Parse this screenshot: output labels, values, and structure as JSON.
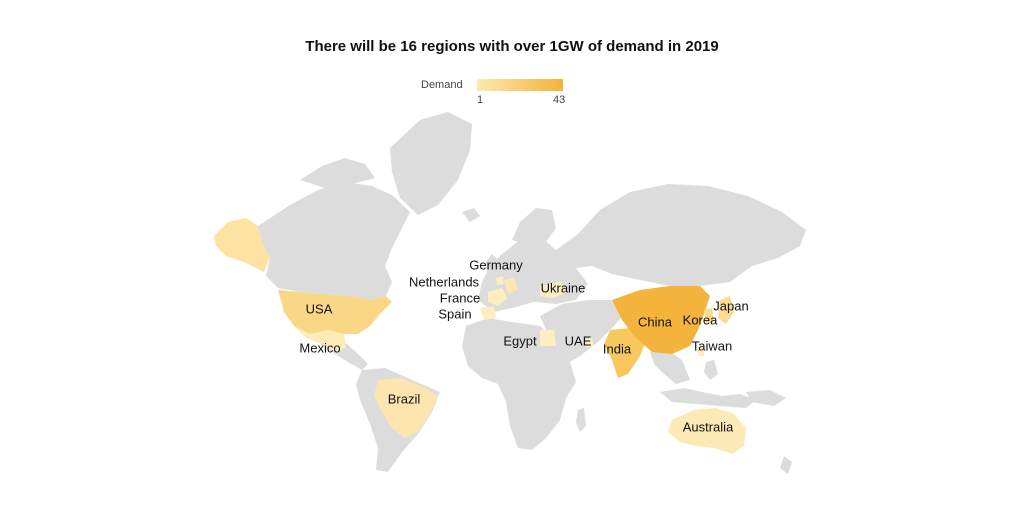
{
  "title": "There will be 16 regions with over 1GW of demand in 2019",
  "legend": {
    "title": "Demand",
    "min": "1",
    "max": "43"
  },
  "colors": {
    "land": "#dcdcdc",
    "scale_low": "#fde9b0",
    "scale_high": "#f4b33a",
    "label": "#111111"
  },
  "regions": {
    "usa": "USA",
    "mexico": "Mexico",
    "brazil": "Brazil",
    "germany": "Germany",
    "netherlands": "Netherlands",
    "france": "France",
    "spain": "Spain",
    "ukraine": "Ukraine",
    "egypt": "Egypt",
    "uae": "UAE",
    "india": "India",
    "china": "China",
    "korea": "Korea",
    "japan": "Japan",
    "taiwan": "Taiwan",
    "australia": "Australia"
  }
}
